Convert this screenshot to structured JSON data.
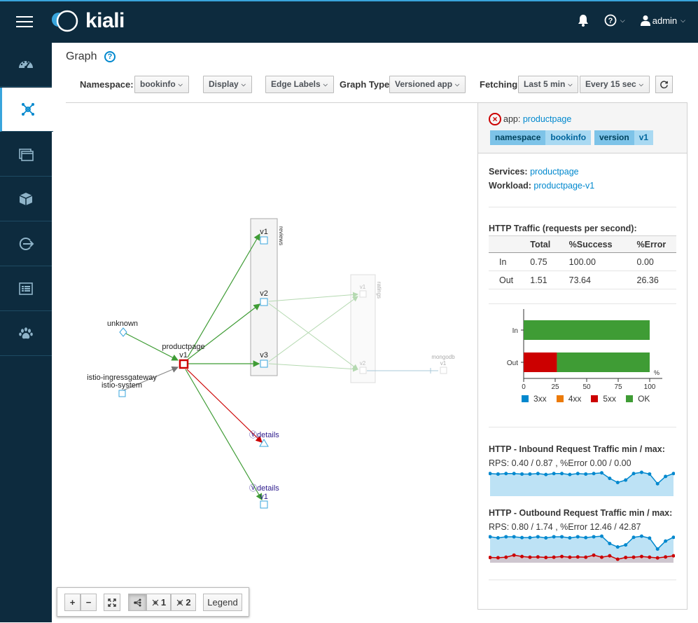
{
  "brand": {
    "logo_text": "kiali"
  },
  "user": {
    "name": "admin"
  },
  "nav": [
    {
      "name": "overview-icon"
    },
    {
      "name": "graph-icon"
    },
    {
      "name": "applications-icon"
    },
    {
      "name": "workloads-icon"
    },
    {
      "name": "services-icon"
    },
    {
      "name": "istio-config-icon"
    },
    {
      "name": "distributed-tracing-icon"
    }
  ],
  "page": {
    "title": "Graph"
  },
  "toolbar": {
    "namespace_label": "Namespace:",
    "namespace_value": "bookinfo",
    "display_label": "Display",
    "edge_labels_label": "Edge Labels",
    "graph_type_label": "Graph Type",
    "graph_type_value": "Versioned app",
    "fetching_label": "Fetching",
    "duration_value": "Last 5 min",
    "refresh_value": "Every 15 sec"
  },
  "graph": {
    "nodes": {
      "unknown": "unknown",
      "productpage": "productpage",
      "productpage_version": "v1",
      "ingress_name": "istio-ingressgateway",
      "ingress_ns": "istio-system",
      "reviews_group": "reviews",
      "reviews_v1": "v1",
      "reviews_v2": "v2",
      "reviews_v3": "v3",
      "ratings_group": "ratings",
      "ratings_v1": "v1",
      "ratings_v2": "v2",
      "mongodb": "mongodb",
      "mongodb_version": "v1",
      "details_service": "details",
      "details_app": "details",
      "details_version": "v1"
    }
  },
  "panel": {
    "app_key": "app:",
    "app_value": "productpage",
    "badges": [
      {
        "key": "namespace",
        "value": "bookinfo"
      },
      {
        "key": "version",
        "value": "v1"
      }
    ],
    "services_label": "Services:",
    "services_value": "productpage",
    "workload_label": "Workload:",
    "workload_value": "productpage-v1",
    "http_traffic_title": "HTTP Traffic (requests per second):",
    "table_headers": [
      "",
      "Total",
      "%Success",
      "%Error"
    ],
    "table_rows": [
      [
        "In",
        "0.75",
        "100.00",
        "0.00"
      ],
      [
        "Out",
        "1.51",
        "73.64",
        "26.36"
      ]
    ],
    "inbound_title": "HTTP - Inbound Request Traffic min / max:",
    "inbound_stats": "RPS: 0.40 / 0.87 , %Error 0.00 / 0.00",
    "outbound_title": "HTTP - Outbound Request Traffic min / max:",
    "outbound_stats": "RPS: 0.80 / 1.74 , %Error 12.46 / 42.87"
  },
  "chart_data": {
    "type": "bar",
    "categories": [
      "In",
      "Out"
    ],
    "series": [
      {
        "name": "3xx",
        "values": [
          0,
          0
        ]
      },
      {
        "name": "4xx",
        "values": [
          0,
          0
        ]
      },
      {
        "name": "5xx",
        "values": [
          0,
          26.36
        ]
      },
      {
        "name": "OK",
        "values": [
          100,
          73.64
        ]
      }
    ],
    "orientation": "horizontal",
    "stacked": true,
    "xlim": [
      0,
      100
    ],
    "xticks": [
      "0",
      "25",
      "50",
      "75",
      "100"
    ],
    "unit_label": "%",
    "colors": {
      "3xx": "#0088ce",
      "4xx": "#ec7a08",
      "5xx": "#cc0000",
      "OK": "#3f9c35"
    },
    "legend_position": "bottom"
  },
  "sparklines": {
    "inbound_rps": [
      0.82,
      0.8,
      0.82,
      0.82,
      0.8,
      0.8,
      0.82,
      0.78,
      0.82,
      0.82,
      0.78,
      0.82,
      0.8,
      0.82,
      0.85,
      0.62,
      0.45,
      0.55,
      0.82,
      0.87,
      0.8,
      0.4,
      0.7,
      0.82
    ],
    "outbound_rps": [
      1.7,
      1.62,
      1.7,
      1.7,
      1.64,
      1.64,
      1.7,
      1.62,
      1.7,
      1.7,
      1.62,
      1.7,
      1.64,
      1.7,
      1.74,
      1.2,
      0.95,
      1.1,
      1.66,
      1.74,
      1.6,
      0.8,
      1.38,
      1.66
    ],
    "outbound_err": [
      0.18,
      0.16,
      0.2,
      0.35,
      0.25,
      0.2,
      0.22,
      0.18,
      0.2,
      0.25,
      0.2,
      0.22,
      0.2,
      0.35,
      0.2,
      0.3,
      0.05,
      0.18,
      0.2,
      0.25,
      0.2,
      0.15,
      0.22,
      0.3
    ]
  },
  "graph_toolbar": {
    "zoom_in": "+",
    "zoom_out": "−",
    "layout1": "1",
    "layout2": "2",
    "legend": "Legend"
  }
}
